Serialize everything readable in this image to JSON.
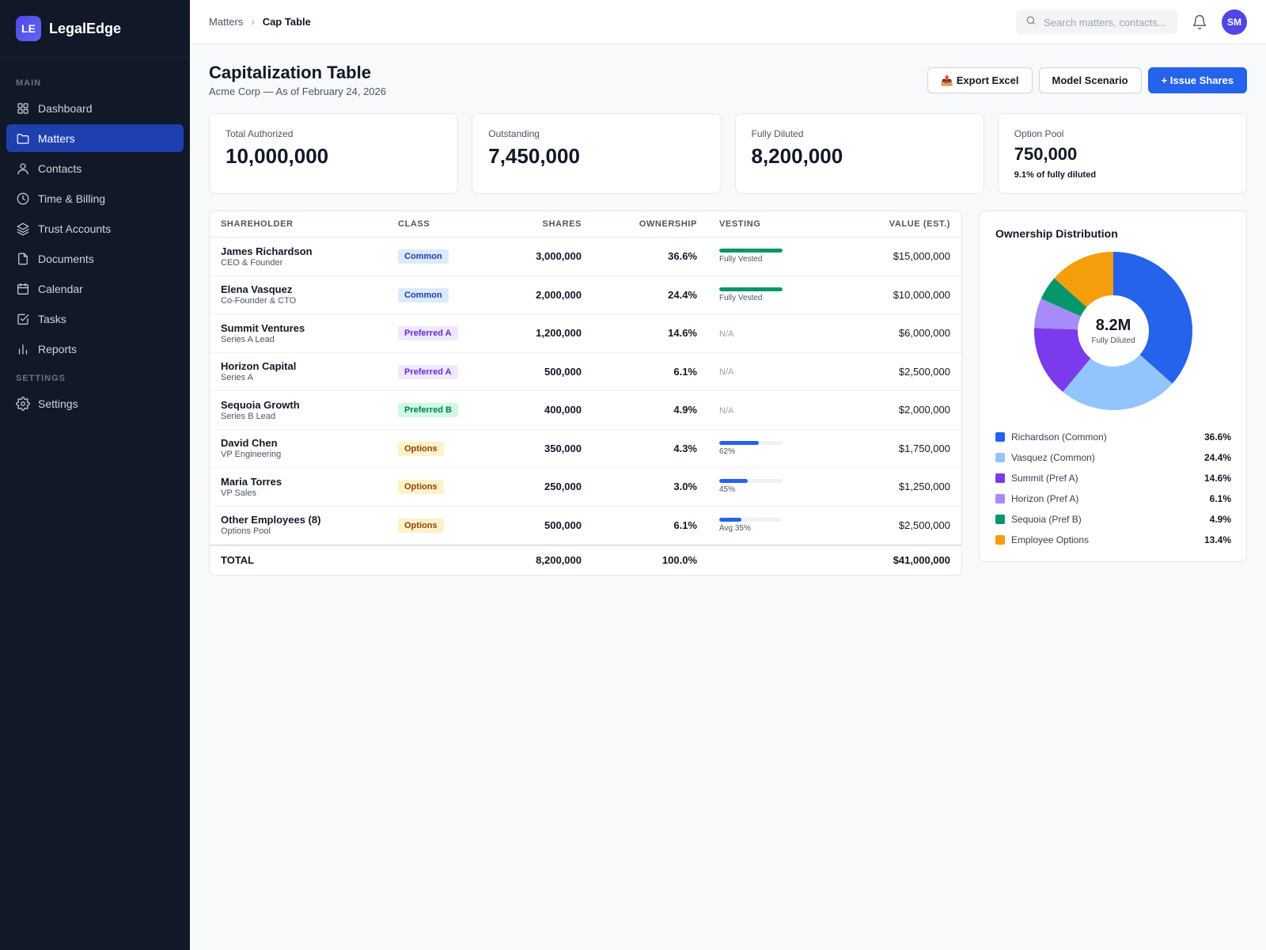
{
  "brand": {
    "logo": "LE",
    "name": "LegalEdge"
  },
  "sidebar": {
    "main_label": "MAIN",
    "settings_label": "SETTINGS",
    "items": [
      {
        "label": "Dashboard",
        "icon": "grid-icon",
        "active": false
      },
      {
        "label": "Matters",
        "icon": "folder-icon",
        "active": true
      },
      {
        "label": "Contacts",
        "icon": "user-icon",
        "active": false
      },
      {
        "label": "Time & Billing",
        "icon": "clock-icon",
        "active": false
      },
      {
        "label": "Trust Accounts",
        "icon": "layers-icon",
        "active": false
      },
      {
        "label": "Documents",
        "icon": "file-icon",
        "active": false
      },
      {
        "label": "Calendar",
        "icon": "calendar-icon",
        "active": false
      },
      {
        "label": "Tasks",
        "icon": "checkbox-icon",
        "active": false
      },
      {
        "label": "Reports",
        "icon": "bar-chart-icon",
        "active": false
      }
    ],
    "settings_items": [
      {
        "label": "Settings",
        "icon": "gear-icon"
      }
    ]
  },
  "topbar": {
    "breadcrumb_parent": "Matters",
    "breadcrumb_sep": "›",
    "breadcrumb_current": "Cap Table",
    "search_placeholder": "Search matters, contacts...",
    "avatar": "SM"
  },
  "header": {
    "title": "Capitalization Table",
    "subtitle": "Acme Corp — As of February 24, 2026",
    "export_icon": "📤",
    "export_label": "Export Excel",
    "scenario_label": "Model Scenario",
    "issue_label": "+ Issue Shares"
  },
  "stats": [
    {
      "label": "Total Authorized",
      "value": "10,000,000"
    },
    {
      "label": "Outstanding",
      "value": "7,450,000"
    },
    {
      "label": "Fully Diluted",
      "value": "8,200,000"
    },
    {
      "label": "Option Pool",
      "value": "750,000",
      "note": "9.1% of fully diluted"
    }
  ],
  "table": {
    "columns": [
      "SHAREHOLDER",
      "CLASS",
      "SHARES",
      "OWNERSHIP",
      "VESTING",
      "VALUE (EST.)"
    ],
    "rows": [
      {
        "name": "James Richardson",
        "role": "CEO & Founder",
        "class": "Common",
        "shares": "3,000,000",
        "ownership": "36.6%",
        "vesting_label": "Fully Vested",
        "vesting_pct": 1.0,
        "vesting_color": "#059669",
        "value": "$15,000,000"
      },
      {
        "name": "Elena Vasquez",
        "role": "Co-Founder & CTO",
        "class": "Common",
        "shares": "2,000,000",
        "ownership": "24.4%",
        "vesting_label": "Fully Vested",
        "vesting_pct": 1.0,
        "vesting_color": "#059669",
        "value": "$10,000,000"
      },
      {
        "name": "Summit Ventures",
        "role": "Series A Lead",
        "class": "Preferred A",
        "shares": "1,200,000",
        "ownership": "14.6%",
        "vesting_label": "N/A",
        "vesting_pct": null,
        "value": "$6,000,000"
      },
      {
        "name": "Horizon Capital",
        "role": "Series A",
        "class": "Preferred A",
        "shares": "500,000",
        "ownership": "6.1%",
        "vesting_label": "N/A",
        "vesting_pct": null,
        "value": "$2,500,000"
      },
      {
        "name": "Sequoia Growth",
        "role": "Series B Lead",
        "class": "Preferred B",
        "shares": "400,000",
        "ownership": "4.9%",
        "vesting_label": "N/A",
        "vesting_pct": null,
        "value": "$2,000,000"
      },
      {
        "name": "David Chen",
        "role": "VP Engineering",
        "class": "Options",
        "shares": "350,000",
        "ownership": "4.3%",
        "vesting_label": "62%",
        "vesting_pct": 0.62,
        "vesting_color": "#2563eb",
        "value": "$1,750,000"
      },
      {
        "name": "Maria Torres",
        "role": "VP Sales",
        "class": "Options",
        "shares": "250,000",
        "ownership": "3.0%",
        "vesting_label": "45%",
        "vesting_pct": 0.45,
        "vesting_color": "#2563eb",
        "value": "$1,250,000"
      },
      {
        "name": "Other Employees (8)",
        "role": "Options Pool",
        "class": "Options",
        "shares": "500,000",
        "ownership": "6.1%",
        "vesting_label": "Avg 35%",
        "vesting_pct": 0.35,
        "vesting_color": "#2563eb",
        "value": "$2,500,000"
      }
    ],
    "total": {
      "label": "TOTAL",
      "shares": "8,200,000",
      "ownership": "100.0%",
      "value": "$41,000,000"
    }
  },
  "badge_colors": {
    "Common": {
      "bg": "#dbeafe",
      "fg": "#1e40af"
    },
    "Preferred A": {
      "bg": "#ede9fe",
      "fg": "#6d28d9"
    },
    "Preferred B": {
      "bg": "#d1fae5",
      "fg": "#047857"
    },
    "Options": {
      "bg": "#fef3c7",
      "fg": "#92400e"
    }
  },
  "chart_data": {
    "type": "pie",
    "title": "Ownership Distribution",
    "center_value": "8.2M",
    "center_label": "Fully Diluted",
    "categories": [
      "Richardson (Common)",
      "Vasquez (Common)",
      "Summit (Pref A)",
      "Horizon (Pref A)",
      "Sequoia (Pref B)",
      "Employee Options"
    ],
    "values": [
      36.6,
      24.4,
      14.6,
      6.1,
      4.9,
      13.4
    ],
    "labels": [
      "36.6%",
      "24.4%",
      "14.6%",
      "6.1%",
      "4.9%",
      "13.4%"
    ],
    "colors": [
      "#2563eb",
      "#93c5fd",
      "#7c3aed",
      "#a78bfa",
      "#059669",
      "#f59e0b"
    ]
  }
}
